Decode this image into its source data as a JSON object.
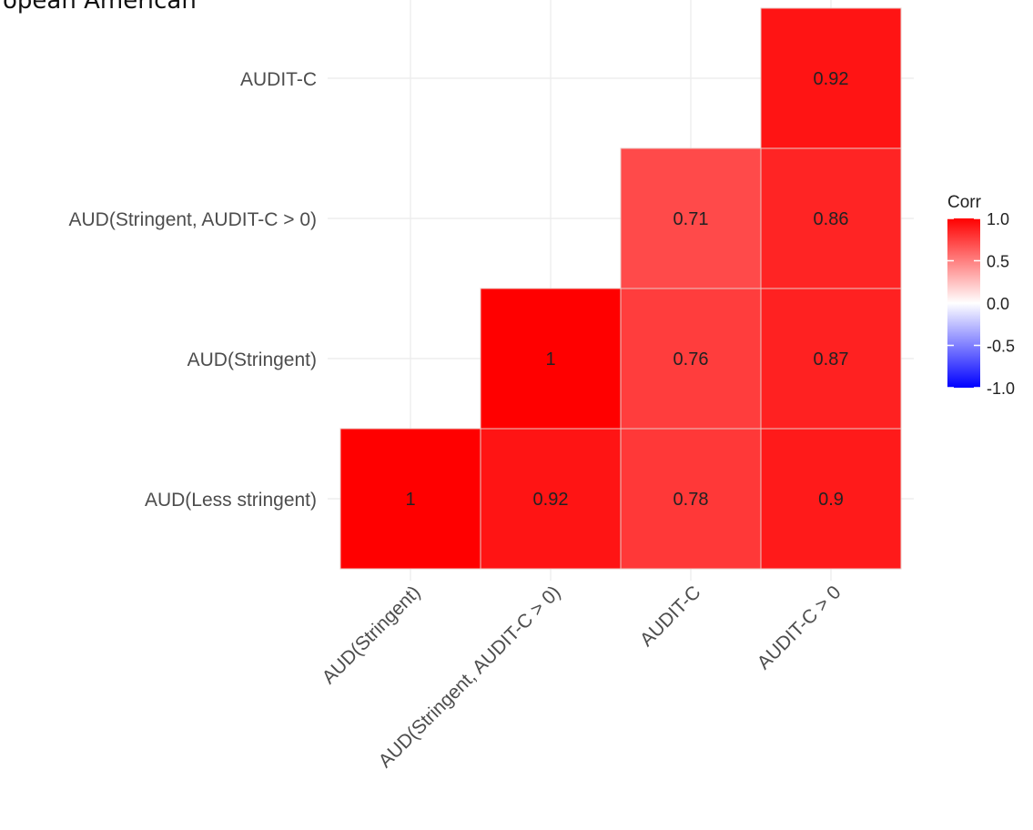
{
  "chart_data": {
    "type": "heatmap",
    "title": "European American",
    "row_categories": [
      "AUD(Less stringent)",
      "AUD(Stringent)",
      "AUD(Stringent, AUDIT-C > 0)",
      "AUDIT-C"
    ],
    "col_categories": [
      "AUD(Stringent)",
      "AUD(Stringent, AUDIT-C > 0)",
      "AUDIT-C",
      "AUDIT-C > 0"
    ],
    "cells": [
      {
        "row": "AUD(Less stringent)",
        "col": "AUD(Stringent)",
        "value": 1,
        "label": "1"
      },
      {
        "row": "AUD(Less stringent)",
        "col": "AUD(Stringent, AUDIT-C > 0)",
        "value": 0.92,
        "label": "0.92"
      },
      {
        "row": "AUD(Less stringent)",
        "col": "AUDIT-C",
        "value": 0.78,
        "label": "0.78"
      },
      {
        "row": "AUD(Less stringent)",
        "col": "AUDIT-C > 0",
        "value": 0.9,
        "label": "0.9"
      },
      {
        "row": "AUD(Stringent)",
        "col": "AUD(Stringent, AUDIT-C > 0)",
        "value": 1,
        "label": "1"
      },
      {
        "row": "AUD(Stringent)",
        "col": "AUDIT-C",
        "value": 0.76,
        "label": "0.76"
      },
      {
        "row": "AUD(Stringent)",
        "col": "AUDIT-C > 0",
        "value": 0.87,
        "label": "0.87"
      },
      {
        "row": "AUD(Stringent, AUDIT-C > 0)",
        "col": "AUDIT-C",
        "value": 0.71,
        "label": "0.71"
      },
      {
        "row": "AUD(Stringent, AUDIT-C > 0)",
        "col": "AUDIT-C > 0",
        "value": 0.86,
        "label": "0.86"
      },
      {
        "row": "AUDIT-C",
        "col": "AUDIT-C > 0",
        "value": 0.92,
        "label": "0.92"
      }
    ],
    "legend": {
      "title": "Corr",
      "range": [
        -1,
        1
      ],
      "ticks": [
        {
          "value": 1,
          "label": "1.0"
        },
        {
          "value": 0.5,
          "label": "0.5"
        },
        {
          "value": 0,
          "label": "0.0"
        },
        {
          "value": -0.5,
          "label": "-0.5"
        },
        {
          "value": -1,
          "label": "-1.0"
        }
      ],
      "placement": "right"
    },
    "colors": {
      "low": "#0000ff",
      "mid": "#ffffff",
      "high": "#ff0000"
    },
    "grid": true,
    "xlabel": "",
    "ylabel": ""
  }
}
